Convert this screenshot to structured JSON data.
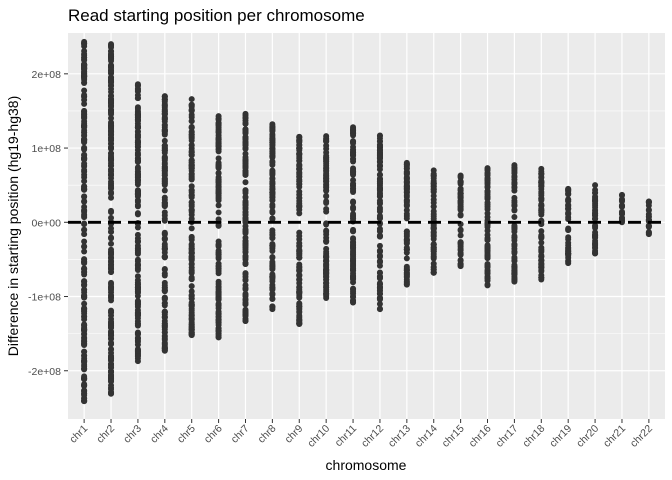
{
  "chart_data": {
    "type": "scatter",
    "title": "Read starting position per chromosome",
    "xlabel": "chromosome",
    "ylabel": "Difference in starting position (hg19-hg38)",
    "categories": [
      "chr1",
      "chr2",
      "chr3",
      "chr4",
      "chr5",
      "chr6",
      "chr7",
      "chr8",
      "chr9",
      "chr10",
      "chr11",
      "chr12",
      "chr13",
      "chr14",
      "chr15",
      "chr16",
      "chr17",
      "chr18",
      "chr19",
      "chr20",
      "chr21",
      "chr22"
    ],
    "ylim": [
      -265000000,
      255000000
    ],
    "yticks": [
      {
        "value": 200000000,
        "label": "2e+08"
      },
      {
        "value": 100000000,
        "label": "1e+08"
      },
      {
        "value": 0,
        "label": "0e+00"
      },
      {
        "value": -100000000,
        "label": "-1e+08"
      },
      {
        "value": -200000000,
        "label": "-2e+08"
      }
    ],
    "point_ranges": [
      {
        "category": "chr1",
        "min": -241000000,
        "max": 243000000
      },
      {
        "category": "chr2",
        "min": -231000000,
        "max": 240000000
      },
      {
        "category": "chr3",
        "min": -187000000,
        "max": 186000000
      },
      {
        "category": "chr4",
        "min": -173000000,
        "max": 170000000
      },
      {
        "category": "chr5",
        "min": -152000000,
        "max": 166000000
      },
      {
        "category": "chr6",
        "min": -155000000,
        "max": 143000000
      },
      {
        "category": "chr7",
        "min": -133000000,
        "max": 146000000
      },
      {
        "category": "chr8",
        "min": -117000000,
        "max": 132000000
      },
      {
        "category": "chr9",
        "min": -137000000,
        "max": 115000000
      },
      {
        "category": "chr10",
        "min": -102000000,
        "max": 116000000
      },
      {
        "category": "chr11",
        "min": -108000000,
        "max": 128000000
      },
      {
        "category": "chr12",
        "min": -117000000,
        "max": 117000000
      },
      {
        "category": "chr13",
        "min": -84000000,
        "max": 80000000
      },
      {
        "category": "chr14",
        "min": -68000000,
        "max": 70000000
      },
      {
        "category": "chr15",
        "min": -59000000,
        "max": 63000000
      },
      {
        "category": "chr16",
        "min": -85000000,
        "max": 73000000
      },
      {
        "category": "chr17",
        "min": -80000000,
        "max": 77000000
      },
      {
        "category": "chr18",
        "min": -77000000,
        "max": 72000000
      },
      {
        "category": "chr19",
        "min": -55000000,
        "max": 45000000
      },
      {
        "category": "chr20",
        "min": -42000000,
        "max": 50000000
      },
      {
        "category": "chr21",
        "min": 0,
        "max": 37000000
      },
      {
        "category": "chr22",
        "min": -16000000,
        "max": 28000000
      }
    ],
    "reference_line": {
      "y": 0,
      "style": "dashed"
    },
    "grid": true,
    "legend": "none",
    "colors": {
      "panel": "#ebebeb",
      "grid": "#ffffff",
      "point": "#333333",
      "reference_line": "#000000"
    }
  }
}
